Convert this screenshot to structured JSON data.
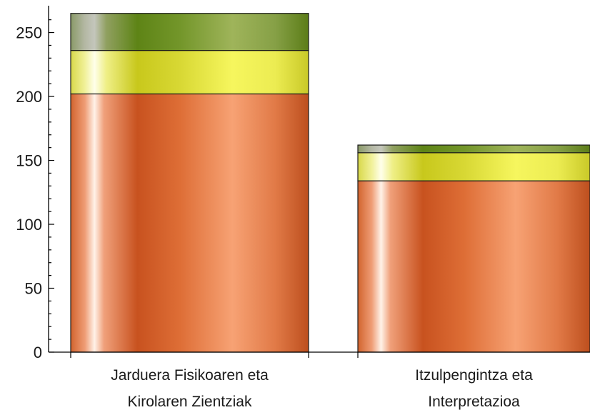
{
  "chart_data": {
    "type": "bar",
    "stacked": true,
    "categories": [
      [
        "Jarduera Fisikoaren eta",
        "Kirolaren Zientziak"
      ],
      [
        "Itzulpengintza eta",
        "Interpretazioa"
      ]
    ],
    "series": [
      {
        "color": "#e06a2c",
        "values": [
          202,
          134
        ]
      },
      {
        "color": "#e8e84a",
        "values": [
          34,
          22
        ]
      },
      {
        "color": "#7f9a2e",
        "values": [
          29,
          6
        ]
      }
    ],
    "ylim": [
      0,
      265
    ],
    "yticks": [
      0,
      50,
      100,
      150,
      200,
      250
    ],
    "minor_tick_step": 10,
    "xlabel": "",
    "ylabel": "",
    "title": "",
    "grid": false,
    "legend": "none"
  }
}
